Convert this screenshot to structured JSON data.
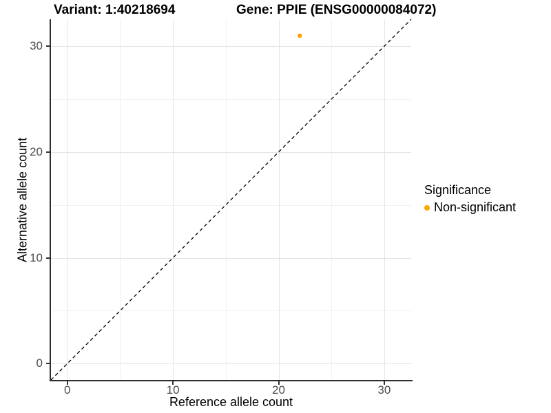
{
  "chart_data": {
    "type": "scatter",
    "titles": [
      "Variant: 1:40218694",
      "Gene: PPIE (ENSG00000084072)"
    ],
    "xlabel": "Reference allele count",
    "ylabel": "Alternative allele count",
    "xlim": [
      -1.55,
      32.55
    ],
    "ylim": [
      -1.55,
      32.55
    ],
    "x_ticks": [
      0,
      10,
      20,
      30
    ],
    "y_ticks": [
      0,
      10,
      20,
      30
    ],
    "x_minor_ticks": [
      5,
      15,
      25
    ],
    "y_minor_ticks": [
      5,
      15,
      25
    ],
    "grid": true,
    "background": "#ffffff",
    "points": [
      {
        "x": 22,
        "y": 31,
        "series": "Non-significant",
        "color": "#FFA500"
      }
    ],
    "reference_line": {
      "type": "abline",
      "intercept": 0,
      "slope": 1,
      "style": "dashed",
      "color": "#000000"
    },
    "legend": {
      "title": "Significance",
      "position": "right",
      "items": [
        {
          "label": "Non-significant",
          "color": "#FFA500"
        }
      ]
    }
  }
}
